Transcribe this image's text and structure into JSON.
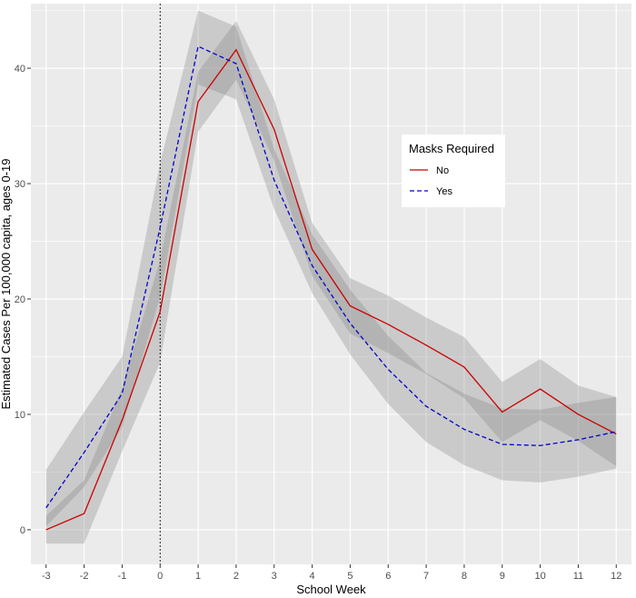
{
  "chart_data": {
    "type": "line",
    "title": "",
    "xlabel": "School Week",
    "ylabel": "Estimated Cases Per 100,000 capita, ages 0-19",
    "x": [
      -3,
      -2,
      -1,
      0,
      1,
      2,
      3,
      4,
      5,
      6,
      7,
      8,
      9,
      10,
      11,
      12
    ],
    "xlim": [
      -3.4,
      12.4
    ],
    "ylim": [
      -3,
      45.6
    ],
    "x_ticks": [
      -3,
      -2,
      -1,
      0,
      1,
      2,
      3,
      4,
      5,
      6,
      7,
      8,
      9,
      10,
      11,
      12
    ],
    "y_ticks": [
      0,
      10,
      20,
      30,
      40
    ],
    "grid": true,
    "panel_background": "#ebebeb",
    "grid_color": "#ffffff",
    "ribbon_color": "#7f7f7f",
    "vline": {
      "x": 0,
      "style": "dotted",
      "color": "#000000"
    },
    "legend": {
      "title": "Masks Required",
      "placement": "right-center"
    },
    "series": [
      {
        "name": "No",
        "color": "#cc0000",
        "dash": "solid",
        "values": [
          0,
          1.4,
          9.5,
          18.9,
          37.1,
          41.6,
          34.7,
          24.3,
          19.4,
          17.8,
          16.0,
          14.1,
          10.2,
          12.2,
          10.0,
          8.3
        ],
        "lower": [
          -1.2,
          -1.2,
          6.8,
          14.5,
          34.5,
          39.0,
          32.0,
          22.0,
          17.0,
          15.3,
          13.5,
          11.4,
          7.6,
          9.5,
          7.7,
          5.5
        ],
        "upper": [
          1.2,
          4.3,
          12.3,
          23.4,
          39.7,
          44.1,
          37.3,
          26.6,
          21.8,
          20.3,
          18.4,
          16.7,
          12.8,
          14.8,
          12.5,
          11.5
        ]
      },
      {
        "name": "Yes",
        "color": "#0000cc",
        "dash": "dashed",
        "values": [
          1.9,
          6.7,
          11.8,
          26.2,
          41.9,
          40.4,
          30.3,
          22.9,
          17.9,
          13.9,
          10.7,
          8.7,
          7.4,
          7.3,
          7.8,
          8.5
        ],
        "lower": [
          0.3,
          3.7,
          8.9,
          20.2,
          38.6,
          37.3,
          27.8,
          20.5,
          15.2,
          10.9,
          7.6,
          5.6,
          4.3,
          4.1,
          4.6,
          5.3
        ],
        "upper": [
          5.2,
          10.2,
          15.0,
          31.8,
          45.0,
          43.6,
          33.0,
          25.6,
          20.8,
          16.8,
          13.6,
          11.8,
          10.5,
          10.4,
          11.0,
          11.5
        ]
      }
    ]
  }
}
